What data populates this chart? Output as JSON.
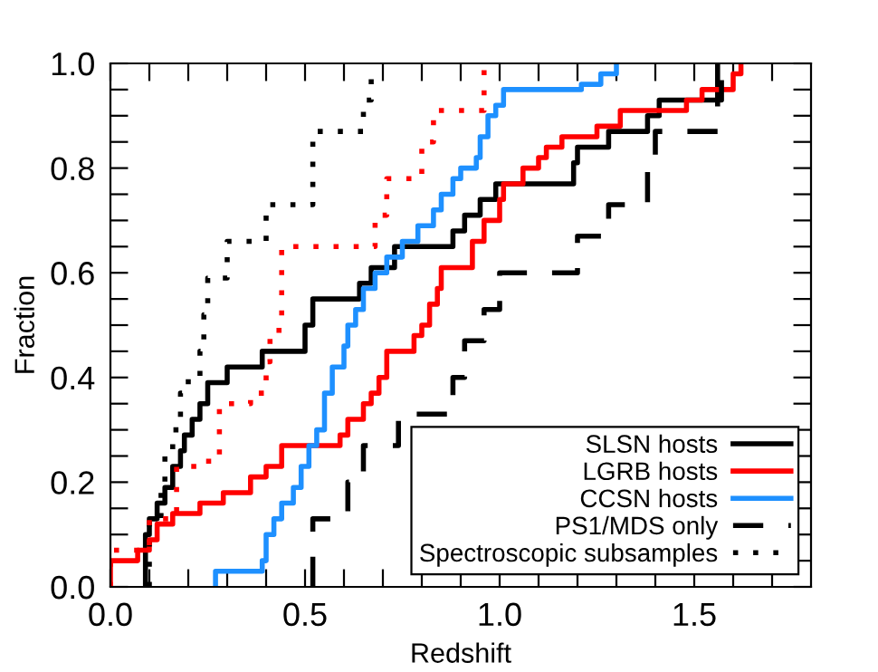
{
  "chart_data": {
    "type": "step",
    "xlabel": "Redshift",
    "ylabel": "Fraction",
    "xlim": [
      0,
      1.8
    ],
    "ylim": [
      0,
      1.0
    ],
    "xticks": [
      {
        "value": 0,
        "label": "0.0"
      },
      {
        "value": 0.1,
        "label": null
      },
      {
        "value": 0.2,
        "label": null
      },
      {
        "value": 0.3,
        "label": null
      },
      {
        "value": 0.4,
        "label": null
      },
      {
        "value": 0.5,
        "label": "0.5"
      },
      {
        "value": 0.6,
        "label": null
      },
      {
        "value": 0.7,
        "label": null
      },
      {
        "value": 0.8,
        "label": null
      },
      {
        "value": 0.9,
        "label": null
      },
      {
        "value": 1.0,
        "label": "1.0"
      },
      {
        "value": 1.1,
        "label": null
      },
      {
        "value": 1.2,
        "label": null
      },
      {
        "value": 1.3,
        "label": null
      },
      {
        "value": 1.4,
        "label": null
      },
      {
        "value": 1.5,
        "label": "1.5"
      },
      {
        "value": 1.6,
        "label": null
      },
      {
        "value": 1.7,
        "label": null
      }
    ],
    "yticks": [
      {
        "value": 0,
        "label": "0.0"
      },
      {
        "value": 0.05,
        "label": null
      },
      {
        "value": 0.1,
        "label": null
      },
      {
        "value": 0.15,
        "label": null
      },
      {
        "value": 0.2,
        "label": "0.2"
      },
      {
        "value": 0.25,
        "label": null
      },
      {
        "value": 0.3,
        "label": null
      },
      {
        "value": 0.35,
        "label": null
      },
      {
        "value": 0.4,
        "label": "0.4"
      },
      {
        "value": 0.45,
        "label": null
      },
      {
        "value": 0.5,
        "label": null
      },
      {
        "value": 0.55,
        "label": null
      },
      {
        "value": 0.6,
        "label": "0.6"
      },
      {
        "value": 0.65,
        "label": null
      },
      {
        "value": 0.7,
        "label": null
      },
      {
        "value": 0.75,
        "label": null
      },
      {
        "value": 0.8,
        "label": "0.8"
      },
      {
        "value": 0.85,
        "label": null
      },
      {
        "value": 0.9,
        "label": null
      },
      {
        "value": 0.95,
        "label": null
      },
      {
        "value": 1.0,
        "label": "1.0"
      }
    ],
    "grid": false,
    "legend": "bottom right",
    "series": [
      {
        "name": "SLSN hosts",
        "color": "#000000",
        "line_style": "solid",
        "x": [
          0.09,
          0.09,
          0.1,
          0.12,
          0.14,
          0.16,
          0.18,
          0.19,
          0.21,
          0.23,
          0.25,
          0.3,
          0.39,
          0.5,
          0.52,
          0.64,
          0.67,
          0.73,
          0.88,
          0.91,
          0.95,
          0.99,
          1.19,
          1.2,
          1.28,
          1.38,
          1.41,
          1.56
        ],
        "values": [
          0,
          0.1,
          0.13,
          0.16,
          0.19,
          0.23,
          0.26,
          0.29,
          0.32,
          0.35,
          0.39,
          0.42,
          0.45,
          0.5,
          0.55,
          0.58,
          0.61,
          0.65,
          0.68,
          0.71,
          0.74,
          0.77,
          0.81,
          0.84,
          0.87,
          0.9,
          0.93,
          1.0
        ]
      },
      {
        "name": "LGRB hosts",
        "color": "#ff0000",
        "line_style": "solid",
        "x": [
          0.0,
          0.0,
          0.07,
          0.1,
          0.12,
          0.16,
          0.23,
          0.29,
          0.36,
          0.4,
          0.44,
          0.59,
          0.61,
          0.65,
          0.67,
          0.69,
          0.71,
          0.78,
          0.8,
          0.82,
          0.84,
          0.85,
          0.93,
          0.96,
          1.0,
          1.01,
          1.06,
          1.1,
          1.12,
          1.16,
          1.25,
          1.31,
          1.48,
          1.52,
          1.6,
          1.62
        ],
        "values": [
          0,
          0.05,
          0.07,
          0.09,
          0.12,
          0.14,
          0.16,
          0.18,
          0.21,
          0.23,
          0.27,
          0.29,
          0.32,
          0.35,
          0.37,
          0.4,
          0.45,
          0.48,
          0.5,
          0.54,
          0.57,
          0.61,
          0.66,
          0.7,
          0.74,
          0.77,
          0.8,
          0.82,
          0.84,
          0.86,
          0.88,
          0.91,
          0.93,
          0.95,
          0.98,
          1.0
        ]
      },
      {
        "name": "CCSN hosts",
        "color": "#1e90ff",
        "line_style": "solid",
        "x": [
          0.27,
          0.27,
          0.39,
          0.4,
          0.42,
          0.44,
          0.47,
          0.49,
          0.51,
          0.53,
          0.55,
          0.57,
          0.6,
          0.61,
          0.63,
          0.65,
          0.68,
          0.71,
          0.75,
          0.79,
          0.83,
          0.85,
          0.88,
          0.9,
          0.94,
          0.95,
          0.97,
          0.99,
          1.01,
          1.21,
          1.26,
          1.3
        ],
        "values": [
          0,
          0.03,
          0.05,
          0.1,
          0.13,
          0.16,
          0.19,
          0.23,
          0.27,
          0.3,
          0.37,
          0.42,
          0.46,
          0.5,
          0.53,
          0.57,
          0.6,
          0.63,
          0.66,
          0.69,
          0.72,
          0.75,
          0.78,
          0.8,
          0.82,
          0.86,
          0.9,
          0.92,
          0.95,
          0.96,
          0.98,
          1.0
        ]
      },
      {
        "name": "PS1/MDS only",
        "color": "#000000",
        "line_style": "dashed",
        "x": [
          0.52,
          0.52,
          0.61,
          0.65,
          0.74,
          0.88,
          0.91,
          0.96,
          1.0,
          1.2,
          1.28,
          1.38,
          1.4,
          1.56,
          1.57
        ],
        "values": [
          0,
          0.13,
          0.2,
          0.27,
          0.33,
          0.4,
          0.47,
          0.53,
          0.6,
          0.67,
          0.73,
          0.8,
          0.87,
          0.93,
          1.0
        ]
      },
      {
        "name": "Spectroscopic subsamples",
        "color": "#000000",
        "line_style": "dotted",
        "x": [
          0.1,
          0.1,
          0.13,
          0.14,
          0.16,
          0.18,
          0.2,
          0.23,
          0.24,
          0.25,
          0.3,
          0.4,
          0.52,
          0.65,
          0.67
        ],
        "values": [
          0,
          0.13,
          0.19,
          0.25,
          0.3,
          0.37,
          0.4,
          0.45,
          0.52,
          0.59,
          0.66,
          0.73,
          0.87,
          0.93,
          1.0
        ]
      },
      {
        "color": "#ff0000",
        "line_style": "dotted",
        "x": [
          0.0,
          0.0,
          0.1,
          0.17,
          0.24,
          0.28,
          0.36,
          0.4,
          0.41,
          0.44,
          0.68,
          0.71,
          0.8,
          0.83,
          0.96
        ],
        "values": [
          0,
          0.07,
          0.13,
          0.23,
          0.24,
          0.35,
          0.37,
          0.43,
          0.49,
          0.65,
          0.71,
          0.78,
          0.85,
          0.91,
          1.0
        ]
      }
    ]
  }
}
